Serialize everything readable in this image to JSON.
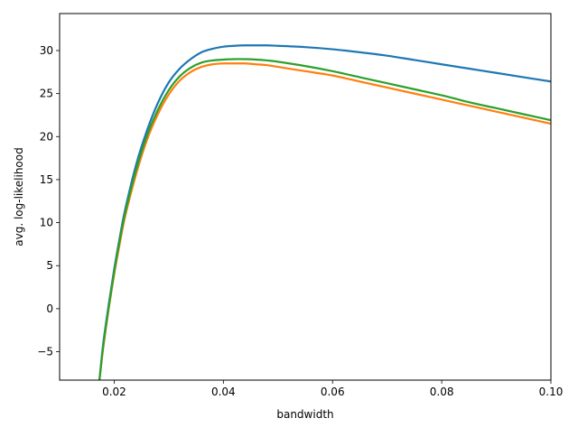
{
  "chart_data": {
    "type": "line",
    "title": "",
    "xlabel": "bandwidth",
    "ylabel": "avg. log-likelihood",
    "xlim": [
      0.01,
      0.1
    ],
    "ylim": [
      -8.3,
      34.3
    ],
    "xticks": [
      0.02,
      0.04,
      0.06,
      0.08,
      0.1
    ],
    "xtick_labels": [
      "0.02",
      "0.04",
      "0.06",
      "0.08",
      "0.10"
    ],
    "yticks": [
      -5,
      0,
      5,
      10,
      15,
      20,
      25,
      30
    ],
    "ytick_labels": [
      "−5",
      "0",
      "5",
      "10",
      "15",
      "20",
      "25",
      "30"
    ],
    "grid": false,
    "legend": "none",
    "series": [
      {
        "color": "#1f77b4",
        "x": [
          0.0173,
          0.018,
          0.019,
          0.02,
          0.021,
          0.022,
          0.024,
          0.026,
          0.028,
          0.03,
          0.032,
          0.034,
          0.036,
          0.038,
          0.04,
          0.042,
          0.044,
          0.046,
          0.048,
          0.05,
          0.055,
          0.06,
          0.065,
          0.07,
          0.075,
          0.08,
          0.085,
          0.09,
          0.095,
          0.1
        ],
        "y": [
          -8.3,
          -4.0,
          0.5,
          4.6,
          8.2,
          11.5,
          16.7,
          20.7,
          23.9,
          26.3,
          27.9,
          29.0,
          29.8,
          30.2,
          30.45,
          30.55,
          30.6,
          30.6,
          30.6,
          30.55,
          30.4,
          30.15,
          29.8,
          29.4,
          28.9,
          28.4,
          27.9,
          27.4,
          26.9,
          26.4
        ]
      },
      {
        "color": "#ff7f0e",
        "x": [
          0.0173,
          0.018,
          0.019,
          0.02,
          0.021,
          0.022,
          0.024,
          0.026,
          0.028,
          0.03,
          0.032,
          0.034,
          0.036,
          0.038,
          0.04,
          0.042,
          0.044,
          0.046,
          0.048,
          0.05,
          0.055,
          0.06,
          0.065,
          0.07,
          0.075,
          0.08,
          0.085,
          0.09,
          0.095,
          0.1
        ],
        "y": [
          -8.3,
          -4.5,
          0.0,
          4.0,
          7.5,
          10.7,
          15.6,
          19.6,
          22.6,
          24.9,
          26.5,
          27.5,
          28.1,
          28.4,
          28.5,
          28.5,
          28.5,
          28.4,
          28.3,
          28.1,
          27.6,
          27.1,
          26.4,
          25.7,
          25.0,
          24.3,
          23.6,
          22.9,
          22.2,
          21.5
        ]
      },
      {
        "color": "#2ca02c",
        "x": [
          0.0173,
          0.018,
          0.019,
          0.02,
          0.021,
          0.022,
          0.024,
          0.026,
          0.028,
          0.03,
          0.032,
          0.034,
          0.036,
          0.038,
          0.04,
          0.042,
          0.044,
          0.046,
          0.048,
          0.05,
          0.055,
          0.06,
          0.065,
          0.07,
          0.075,
          0.08,
          0.085,
          0.09,
          0.095,
          0.1
        ],
        "y": [
          -8.3,
          -4.3,
          0.2,
          4.3,
          7.9,
          11.1,
          16.1,
          20.1,
          23.1,
          25.4,
          27.0,
          28.0,
          28.6,
          28.85,
          28.95,
          29.0,
          29.0,
          28.95,
          28.85,
          28.7,
          28.2,
          27.6,
          26.9,
          26.2,
          25.5,
          24.8,
          24.0,
          23.3,
          22.6,
          21.9
        ]
      }
    ]
  }
}
